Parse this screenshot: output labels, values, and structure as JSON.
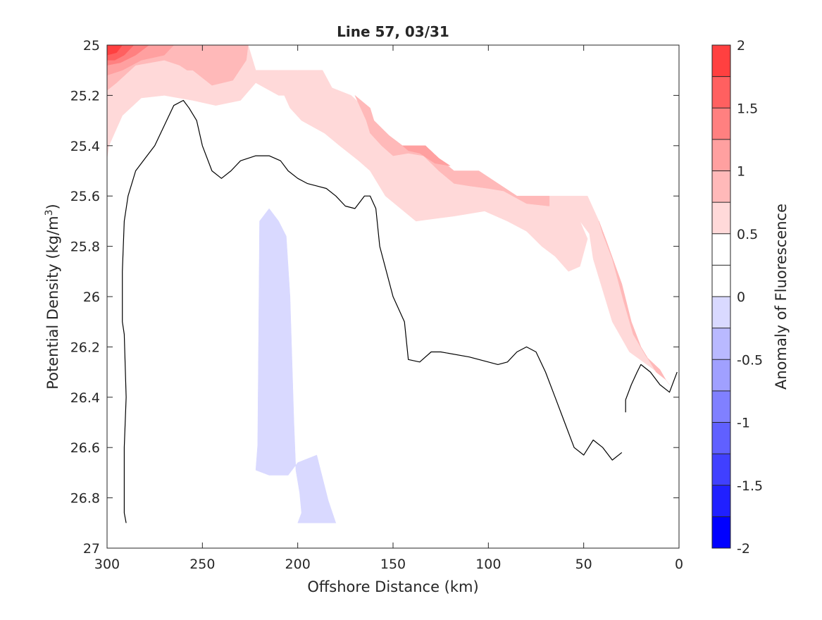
{
  "chart_data": {
    "type": "contour",
    "title": "Line 57, 03/31",
    "xlabel": "Offshore Distance (km)",
    "ylabel_main": "Potential Density (kg/m",
    "ylabel_sup": "3",
    "ylabel_tail": ")",
    "xlim": [
      300,
      0
    ],
    "x_reversed": true,
    "ylim": [
      25,
      27
    ],
    "y_reversed": true,
    "x_ticks": [
      300,
      250,
      200,
      150,
      100,
      50,
      0
    ],
    "y_ticks": [
      25,
      25.2,
      25.4,
      25.6,
      25.8,
      26,
      26.2,
      26.4,
      26.6,
      26.8,
      27
    ],
    "y_tick_labels": [
      "25",
      "25.2",
      "25.4",
      "25.6",
      "25.8",
      "26",
      "26.2",
      "26.4",
      "26.6",
      "26.8",
      "27"
    ],
    "colorbar": {
      "label": "Anomaly of Fluorescence",
      "range": [
        -2,
        2
      ],
      "ticks": [
        2,
        1.5,
        1,
        0.5,
        0,
        -0.5,
        -1,
        -1.5,
        -2
      ],
      "tick_labels": [
        "2",
        "1.5",
        "1",
        "0.5",
        "0",
        "-0.5",
        "-1",
        "-1.5",
        "-2"
      ],
      "levels": [
        -2,
        -1.75,
        -1.5,
        -1.25,
        -1,
        -0.75,
        -0.5,
        -0.25,
        0,
        0.25,
        0.5,
        0.75,
        1,
        1.25,
        1.5,
        1.75,
        2
      ],
      "colors": [
        "#0000ff",
        "#2020ff",
        "#4040ff",
        "#6060ff",
        "#8080ff",
        "#a0a0ff",
        "#b9b9ff",
        "#d9d9ff",
        "#ffffff",
        "#ffffff",
        "#ffd9d9",
        "#ffb9b9",
        "#ffa0a0",
        "#ff8080",
        "#ff6060",
        "#ff4040",
        "#ff0000"
      ]
    },
    "regions": [
      {
        "name": "positive-band-0.25",
        "color": "#ffd9d9",
        "points": [
          [
            300,
            25
          ],
          [
            226,
            25
          ],
          [
            222,
            25.1
          ],
          [
            210,
            25.1
          ],
          [
            200,
            25.1
          ],
          [
            187,
            25.1
          ],
          [
            182,
            25.17
          ],
          [
            172,
            25.2
          ],
          [
            165,
            25.25
          ],
          [
            160,
            25.3
          ],
          [
            152,
            25.36
          ],
          [
            145,
            25.4
          ],
          [
            133,
            25.4
          ],
          [
            126,
            25.45
          ],
          [
            118,
            25.5
          ],
          [
            105,
            25.5
          ],
          [
            95,
            25.55
          ],
          [
            85,
            25.6
          ],
          [
            60,
            25.6
          ],
          [
            48,
            25.6
          ],
          [
            42,
            25.7
          ],
          [
            38,
            25.78
          ],
          [
            30,
            25.95
          ],
          [
            25,
            26.1
          ],
          [
            20,
            26.2
          ],
          [
            12,
            26.3
          ],
          [
            7,
            26.33
          ],
          [
            5,
            26.35
          ],
          [
            8,
            26.32
          ],
          [
            15,
            26.28
          ],
          [
            26,
            26.22
          ],
          [
            35,
            26.1
          ],
          [
            45,
            25.85
          ],
          [
            47,
            25.75
          ],
          [
            52,
            25.7
          ],
          [
            48,
            25.77
          ],
          [
            52,
            25.88
          ],
          [
            58,
            25.9
          ],
          [
            65,
            25.84
          ],
          [
            72,
            25.8
          ],
          [
            80,
            25.74
          ],
          [
            90,
            25.7
          ],
          [
            102,
            25.66
          ],
          [
            110,
            25.67
          ],
          [
            118,
            25.68
          ],
          [
            128,
            25.69
          ],
          [
            138,
            25.7
          ],
          [
            146,
            25.65
          ],
          [
            154,
            25.6
          ],
          [
            162,
            25.5
          ],
          [
            168,
            25.46
          ],
          [
            178,
            25.4
          ],
          [
            186,
            25.35
          ],
          [
            198,
            25.3
          ],
          [
            204,
            25.25
          ],
          [
            207,
            25.2
          ],
          [
            210,
            25.2
          ],
          [
            222,
            25.15
          ],
          [
            230,
            25.22
          ],
          [
            243,
            25.24
          ],
          [
            255,
            25.22
          ],
          [
            270,
            25.2
          ],
          [
            282,
            25.21
          ],
          [
            292,
            25.28
          ],
          [
            299,
            25.4
          ],
          [
            300,
            25.45
          ]
        ]
      },
      {
        "name": "positive-band-0.5",
        "color": "#ffb9b9",
        "points": [
          [
            300,
            25
          ],
          [
            226,
            25
          ],
          [
            227,
            25.06
          ],
          [
            234,
            25.14
          ],
          [
            245,
            25.16
          ],
          [
            255,
            25.1
          ],
          [
            258,
            25.1
          ],
          [
            262,
            25.08
          ],
          [
            270,
            25.06
          ],
          [
            285,
            25.08
          ],
          [
            295,
            25.15
          ],
          [
            300,
            25.18
          ]
        ]
      },
      {
        "name": "positive-band-0.5-east",
        "color": "#ffb9b9",
        "points": [
          [
            170,
            25.2
          ],
          [
            162,
            25.25
          ],
          [
            160,
            25.3
          ],
          [
            152,
            25.36
          ],
          [
            145,
            25.4
          ],
          [
            133,
            25.4
          ],
          [
            126,
            25.45
          ],
          [
            118,
            25.5
          ],
          [
            105,
            25.5
          ],
          [
            95,
            25.55
          ],
          [
            85,
            25.6
          ],
          [
            68,
            25.6
          ],
          [
            68,
            25.64
          ],
          [
            80,
            25.63
          ],
          [
            92,
            25.58
          ],
          [
            100,
            25.57
          ],
          [
            110,
            25.56
          ],
          [
            118,
            25.55
          ],
          [
            126,
            25.5
          ],
          [
            134,
            25.44
          ],
          [
            142,
            25.43
          ],
          [
            150,
            25.44
          ],
          [
            156,
            25.4
          ],
          [
            162,
            25.35
          ],
          [
            164,
            25.3
          ]
        ]
      },
      {
        "name": "positive-band-0.5-slope",
        "color": "#ffb9b9",
        "points": [
          [
            42,
            25.7
          ],
          [
            38,
            25.78
          ],
          [
            30,
            25.95
          ],
          [
            25,
            26.1
          ],
          [
            20,
            26.2
          ],
          [
            12,
            26.3
          ],
          [
            7,
            26.33
          ],
          [
            10,
            26.29
          ],
          [
            17,
            26.24
          ],
          [
            24,
            26.15
          ],
          [
            29,
            26.02
          ],
          [
            35,
            25.85
          ],
          [
            40,
            25.75
          ]
        ]
      },
      {
        "name": "positive-band-0.75",
        "color": "#ffa0a0",
        "points": [
          [
            300,
            25
          ],
          [
            265,
            25
          ],
          [
            270,
            25.04
          ],
          [
            282,
            25.06
          ],
          [
            292,
            25.1
          ],
          [
            300,
            25.12
          ]
        ]
      },
      {
        "name": "positive-band-0.75-east",
        "color": "#ffa0a0",
        "points": [
          [
            145,
            25.4
          ],
          [
            133,
            25.4
          ],
          [
            126,
            25.45
          ],
          [
            120,
            25.48
          ],
          [
            128,
            25.47
          ],
          [
            136,
            25.43
          ],
          [
            142,
            25.42
          ]
        ]
      },
      {
        "name": "positive-band-1.0",
        "color": "#ff8080",
        "points": [
          [
            300,
            25
          ],
          [
            278,
            25
          ],
          [
            285,
            25.04
          ],
          [
            293,
            25.07
          ],
          [
            300,
            25.08
          ]
        ]
      },
      {
        "name": "positive-band-1.25",
        "color": "#ff6060",
        "points": [
          [
            300,
            25
          ],
          [
            286,
            25
          ],
          [
            291,
            25.04
          ],
          [
            296,
            25.06
          ],
          [
            300,
            25.06
          ]
        ]
      },
      {
        "name": "positive-band-1.5",
        "color": "#ff4040",
        "points": [
          [
            300,
            25
          ],
          [
            292,
            25
          ],
          [
            295,
            25.03
          ],
          [
            300,
            25.04
          ]
        ]
      },
      {
        "name": "negative-band-0.25",
        "color": "#d9d9ff",
        "points": [
          [
            215,
            25.65
          ],
          [
            220,
            25.7
          ],
          [
            221,
            26.59
          ],
          [
            222,
            26.69
          ],
          [
            215,
            26.71
          ],
          [
            205,
            26.71
          ],
          [
            200,
            26.66
          ],
          [
            190,
            26.63
          ],
          [
            184,
            26.81
          ],
          [
            180,
            26.9
          ],
          [
            200,
            26.9
          ],
          [
            198,
            26.86
          ],
          [
            199,
            26.78
          ],
          [
            201,
            26.69
          ],
          [
            202,
            26.5
          ],
          [
            204,
            26.0
          ],
          [
            206,
            25.76
          ],
          [
            210,
            25.7
          ]
        ]
      }
    ],
    "contour_lines": [
      {
        "name": "zero-contour-main",
        "color": "#000000",
        "points": [
          [
            290,
            26.9
          ],
          [
            291,
            26.86
          ],
          [
            291,
            26.6
          ],
          [
            290,
            26.4
          ],
          [
            291,
            26.15
          ],
          [
            292,
            26.1
          ],
          [
            292,
            25.9
          ],
          [
            291,
            25.7
          ],
          [
            289,
            25.6
          ],
          [
            285,
            25.5
          ],
          [
            280,
            25.45
          ],
          [
            275,
            25.4
          ],
          [
            270,
            25.32
          ],
          [
            265,
            25.24
          ],
          [
            260,
            25.22
          ],
          [
            257,
            25.25
          ],
          [
            253,
            25.3
          ],
          [
            250,
            25.4
          ],
          [
            245,
            25.5
          ],
          [
            240,
            25.53
          ],
          [
            235,
            25.5
          ],
          [
            230,
            25.46
          ],
          [
            222,
            25.44
          ],
          [
            215,
            25.44
          ],
          [
            209,
            25.46
          ],
          [
            205,
            25.5
          ],
          [
            200,
            25.53
          ],
          [
            195,
            25.55
          ],
          [
            190,
            25.56
          ],
          [
            185,
            25.57
          ],
          [
            180,
            25.6
          ],
          [
            175,
            25.64
          ],
          [
            170,
            25.65
          ],
          [
            165,
            25.6
          ],
          [
            162,
            25.6
          ],
          [
            159,
            25.65
          ],
          [
            157,
            25.8
          ],
          [
            150,
            26.0
          ],
          [
            144,
            26.1
          ],
          [
            142,
            26.25
          ],
          [
            136,
            26.26
          ],
          [
            130,
            26.22
          ],
          [
            125,
            26.22
          ],
          [
            110,
            26.24
          ],
          [
            100,
            26.26
          ],
          [
            95,
            26.27
          ],
          [
            90,
            26.26
          ],
          [
            85,
            26.22
          ],
          [
            80,
            26.2
          ],
          [
            75,
            26.22
          ],
          [
            70,
            26.3
          ],
          [
            65,
            26.4
          ],
          [
            60,
            26.5
          ],
          [
            55,
            26.6
          ],
          [
            50,
            26.63
          ],
          [
            45,
            26.57
          ],
          [
            40,
            26.6
          ],
          [
            35,
            26.65
          ],
          [
            30,
            26.62
          ]
        ]
      },
      {
        "name": "zero-contour-coastal",
        "color": "#000000",
        "points": [
          [
            28,
            26.46
          ],
          [
            28,
            26.41
          ],
          [
            25,
            26.35
          ],
          [
            22,
            26.3
          ],
          [
            20,
            26.27
          ],
          [
            15,
            26.3
          ],
          [
            10,
            26.35
          ],
          [
            5,
            26.38
          ],
          [
            1,
            26.3
          ]
        ]
      }
    ]
  }
}
